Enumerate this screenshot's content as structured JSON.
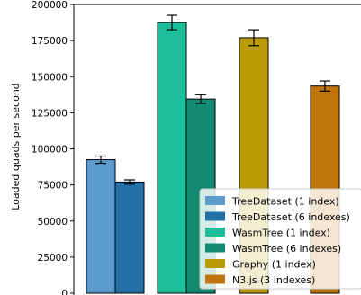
{
  "chart_data": {
    "type": "bar",
    "ylabel": "Loaded quads per second",
    "ylim": [
      0,
      200000
    ],
    "yticks": [
      0,
      25000,
      50000,
      75000,
      100000,
      125000,
      150000,
      175000,
      200000
    ],
    "ytick_labels": [
      "0",
      "25000",
      "50000",
      "75000",
      "100000",
      "125000",
      "150000",
      "175000",
      "200000"
    ],
    "grid": false,
    "legend_position": "bottom-right",
    "series": [
      {
        "name": "TreeDataset (1 index)",
        "color": "#5b9ccf",
        "value": 92500,
        "error": 2500
      },
      {
        "name": "TreeDataset (6 indexes)",
        "color": "#2471a8",
        "value": 77000,
        "error": 1500
      },
      {
        "name": "WasmTree (1 index)",
        "color": "#1dbf9a",
        "value": 187500,
        "error": 5000
      },
      {
        "name": "WasmTree (6 indexes)",
        "color": "#138a72",
        "value": 134500,
        "error": 3000
      },
      {
        "name": "Graphy (1 index)",
        "color": "#bc9b08",
        "value": 177000,
        "error": 5500
      },
      {
        "name": "N3.js (3 indexes)",
        "color": "#bf740c",
        "value": 143500,
        "error": 3500
      }
    ]
  }
}
